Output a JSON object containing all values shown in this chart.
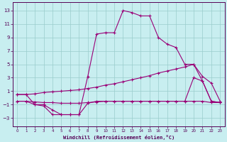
{
  "xlabel": "Windchill (Refroidissement éolien,°C)",
  "bg_color": "#c8eef0",
  "line_color": "#990077",
  "grid_color": "#99cccc",
  "xlim": [
    -0.5,
    23.5
  ],
  "ylim": [
    -4.2,
    14.2
  ],
  "xticks": [
    0,
    1,
    2,
    3,
    4,
    5,
    6,
    7,
    8,
    9,
    10,
    11,
    12,
    13,
    14,
    15,
    16,
    17,
    18,
    19,
    20,
    21,
    22,
    23
  ],
  "yticks": [
    -3,
    -1,
    1,
    3,
    5,
    7,
    9,
    11,
    13
  ],
  "line_main_x": [
    0,
    1,
    2,
    3,
    4,
    5,
    6,
    7,
    8,
    9,
    10,
    11,
    12,
    13,
    14,
    15,
    16,
    17,
    18,
    19,
    20,
    21,
    22,
    23
  ],
  "line_main_y": [
    0.5,
    0.5,
    -1.0,
    -1.2,
    -2.5,
    -2.5,
    -2.5,
    -2.5,
    3.2,
    9.5,
    9.7,
    9.7,
    13.0,
    12.7,
    12.2,
    12.2,
    9.0,
    8.0,
    7.5,
    5.0,
    5.0,
    2.5,
    -0.5,
    -0.7
  ],
  "line_upper_x": [
    0,
    1,
    2,
    3,
    4,
    5,
    6,
    7,
    8,
    9,
    10,
    11,
    12,
    13,
    14,
    15,
    16,
    17,
    18,
    19,
    20,
    21,
    22,
    23
  ],
  "line_upper_y": [
    0.5,
    0.5,
    0.6,
    0.8,
    0.9,
    1.0,
    1.1,
    1.2,
    1.4,
    1.6,
    1.9,
    2.1,
    2.4,
    2.7,
    3.0,
    3.3,
    3.7,
    4.0,
    4.3,
    4.6,
    5.0,
    3.2,
    2.2,
    -0.5
  ],
  "line_mid_x": [
    0,
    1,
    2,
    3,
    4,
    5,
    6,
    7,
    8,
    9,
    10,
    11,
    12,
    13,
    14,
    15,
    16,
    17,
    18,
    19,
    20,
    21,
    22,
    23
  ],
  "line_mid_y": [
    -0.5,
    -0.5,
    -0.6,
    -0.7,
    -0.7,
    -0.8,
    -0.8,
    -0.8,
    -0.7,
    -0.6,
    -0.5,
    -0.5,
    -0.5,
    -0.5,
    -0.5,
    -0.5,
    -0.5,
    -0.5,
    -0.5,
    -0.5,
    3.0,
    2.5,
    -0.5,
    -0.7
  ],
  "line_lower_x": [
    0,
    1,
    2,
    3,
    4,
    5,
    6,
    7,
    8,
    9,
    10,
    11,
    12,
    13,
    14,
    15,
    16,
    17,
    18,
    19,
    20,
    21,
    22,
    23
  ],
  "line_lower_y": [
    -0.5,
    -0.5,
    -1.0,
    -1.0,
    -1.8,
    -2.5,
    -2.5,
    -2.5,
    -0.8,
    -0.5,
    -0.5,
    -0.5,
    -0.5,
    -0.5,
    -0.5,
    -0.5,
    -0.5,
    -0.5,
    -0.5,
    -0.5,
    -0.5,
    -0.5,
    -0.7,
    -0.7
  ]
}
